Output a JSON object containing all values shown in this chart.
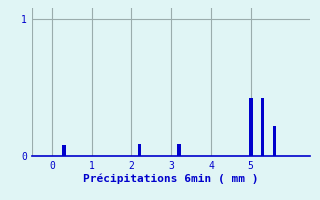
{
  "xlabel": "Précipitations 6min ( mm )",
  "background_color": "#e0f5f5",
  "bar_color": "#0000cc",
  "grid_color": "#9aacac",
  "axis_color": "#0000cc",
  "tick_color": "#0000cc",
  "label_color": "#0000cc",
  "xlim": [
    -0.5,
    6.5
  ],
  "ylim": [
    0,
    1.08
  ],
  "yticks": [
    0,
    1
  ],
  "xticks": [
    0,
    1,
    2,
    3,
    4,
    5
  ],
  "bar_positions": [
    0.3,
    2.2,
    3.2,
    5.0,
    5.3,
    5.6
  ],
  "bar_heights": [
    0.08,
    0.09,
    0.09,
    0.42,
    0.42,
    0.22
  ],
  "bar_width": 0.09,
  "vline_x": [
    -0.5
  ],
  "vline_color": "#9aacac"
}
